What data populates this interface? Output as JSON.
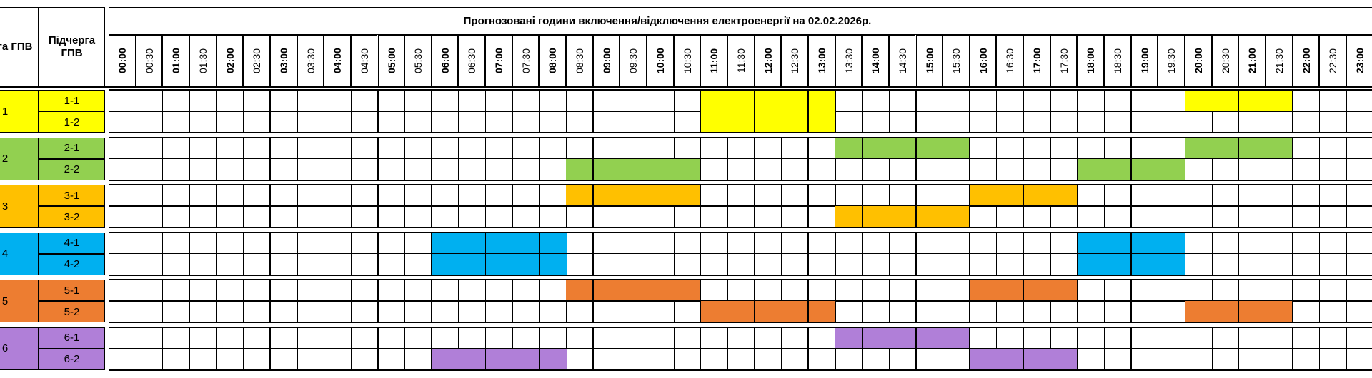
{
  "header": {
    "queue": "Черга ГПВ",
    "subqueue": "Підчерга ГПВ",
    "title": "Прогнозовані години включення/відключення електроенергії на 02.02.2026р."
  },
  "times": [
    "00:00",
    "00:30",
    "01:00",
    "01:30",
    "02:00",
    "02:30",
    "03:00",
    "03:30",
    "04:00",
    "04:30",
    "05:00",
    "05:30",
    "06:00",
    "06:30",
    "07:00",
    "07:30",
    "08:00",
    "08:30",
    "09:00",
    "09:30",
    "10:00",
    "10:30",
    "11:00",
    "11:30",
    "12:00",
    "12:30",
    "13:00",
    "13:30",
    "14:00",
    "14:30",
    "15:00",
    "15:30",
    "16:00",
    "16:30",
    "17:00",
    "17:30",
    "18:00",
    "18:30",
    "19:00",
    "19:30",
    "20:00",
    "20:30",
    "21:00",
    "21:30",
    "22:00",
    "22:30",
    "23:00"
  ],
  "groups": [
    {
      "name": "1",
      "color": "#ffff00",
      "subgroups": [
        {
          "name": "1-1",
          "off_slots": [
            22,
            23,
            24,
            25,
            26,
            40,
            41,
            42,
            43
          ]
        },
        {
          "name": "1-2",
          "off_slots": [
            22,
            23,
            24,
            25,
            26
          ]
        }
      ]
    },
    {
      "name": "2",
      "color": "#92d050",
      "subgroups": [
        {
          "name": "2-1",
          "off_slots": [
            27,
            28,
            29,
            30,
            31,
            40,
            41,
            42,
            43
          ]
        },
        {
          "name": "2-2",
          "off_slots": [
            17,
            18,
            19,
            20,
            21,
            36,
            37,
            38,
            39
          ]
        }
      ]
    },
    {
      "name": "3",
      "color": "#ffc000",
      "subgroups": [
        {
          "name": "3-1",
          "off_slots": [
            17,
            18,
            19,
            20,
            21,
            32,
            33,
            34,
            35
          ]
        },
        {
          "name": "3-2",
          "off_slots": [
            27,
            28,
            29,
            30,
            31
          ]
        }
      ]
    },
    {
      "name": "4",
      "color": "#00b0f0",
      "subgroups": [
        {
          "name": "4-1",
          "off_slots": [
            12,
            13,
            14,
            15,
            16,
            36,
            37,
            38,
            39
          ]
        },
        {
          "name": "4-2",
          "off_slots": [
            12,
            13,
            14,
            15,
            16,
            36,
            37,
            38,
            39
          ]
        }
      ]
    },
    {
      "name": "5",
      "color": "#ed7d31",
      "subgroups": [
        {
          "name": "5-1",
          "off_slots": [
            17,
            18,
            19,
            20,
            21,
            32,
            33,
            34,
            35
          ]
        },
        {
          "name": "5-2",
          "off_slots": [
            22,
            23,
            24,
            25,
            26,
            40,
            41,
            42,
            43
          ]
        }
      ]
    },
    {
      "name": "6",
      "color": "#b07fd8",
      "subgroups": [
        {
          "name": "6-1",
          "off_slots": [
            27,
            28,
            29,
            30,
            31
          ]
        },
        {
          "name": "6-2",
          "off_slots": [
            12,
            13,
            14,
            15,
            16,
            32,
            33,
            34,
            35
          ]
        }
      ]
    }
  ]
}
